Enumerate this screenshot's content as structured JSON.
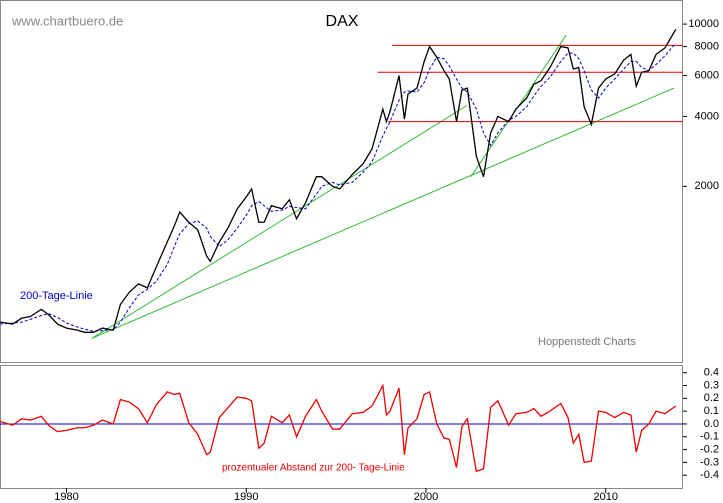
{
  "watermark": "www.chartbuero.de",
  "source": "Hoppenstedt Charts",
  "chart_data": [
    {
      "type": "line",
      "title": "DAX",
      "yscale": "log",
      "xlim": [
        1976.3,
        2014.3
      ],
      "ylim": [
        350,
        12700
      ],
      "yticks": [
        {
          "value": 10000,
          "label": "10000"
        },
        8000,
        6000,
        4000,
        2000
      ],
      "x": [
        1976.3,
        1977.0,
        1977.5,
        1978.0,
        1978.6,
        1979.0,
        1979.5,
        1980.0,
        1980.6,
        1981.0,
        1981.5,
        1982.0,
        1982.6,
        1983.0,
        1983.5,
        1984.0,
        1984.5,
        1985.0,
        1985.6,
        1986.0,
        1986.3,
        1986.8,
        1987.3,
        1987.8,
        1988.0,
        1988.5,
        1989.0,
        1989.5,
        1990.0,
        1990.3,
        1990.7,
        1991.0,
        1991.4,
        1992.0,
        1992.4,
        1992.8,
        1993.3,
        1993.9,
        1994.2,
        1994.8,
        1995.2,
        1995.9,
        1996.5,
        1997.0,
        1997.6,
        1997.8,
        1998.0,
        1998.5,
        1998.8,
        1999.0,
        1999.5,
        1999.9,
        2000.2,
        2000.6,
        2001.0,
        2001.3,
        2001.7,
        2002.0,
        2002.3,
        2002.8,
        2003.2,
        2003.6,
        2004.0,
        2004.6,
        2005.0,
        2005.6,
        2006.0,
        2006.4,
        2006.9,
        2007.5,
        2007.9,
        2008.2,
        2008.5,
        2008.8,
        2009.2,
        2009.6,
        2010.0,
        2010.5,
        2011.0,
        2011.4,
        2011.7,
        2012.0,
        2012.4,
        2012.8,
        2013.3,
        2013.9
      ],
      "series": [
        {
          "name": "DAX",
          "color": "#000000",
          "values": [
            520,
            510,
            540,
            550,
            590,
            560,
            510,
            490,
            480,
            470,
            470,
            490,
            480,
            620,
            700,
            760,
            730,
            900,
            1150,
            1350,
            1550,
            1400,
            1300,
            1000,
            950,
            1150,
            1330,
            1600,
            1800,
            1950,
            1400,
            1400,
            1650,
            1600,
            1750,
            1450,
            1700,
            2200,
            2200,
            2000,
            1950,
            2250,
            2500,
            2900,
            4300,
            3800,
            4200,
            6000,
            3900,
            5000,
            5300,
            6900,
            8000,
            7200,
            6300,
            5800,
            3800,
            5200,
            5300,
            2700,
            2200,
            3400,
            4000,
            3800,
            4300,
            4800,
            5500,
            5700,
            6500,
            8000,
            7900,
            6400,
            6500,
            4400,
            3700,
            5300,
            5800,
            6100,
            7000,
            7400,
            5400,
            6200,
            6300,
            7400,
            7900,
            9500
          ]
        },
        {
          "name": "200-Tage-Linie",
          "color": "#0000cc",
          "dashed": true,
          "values": [
            510,
            515,
            520,
            535,
            555,
            565,
            545,
            515,
            495,
            485,
            475,
            478,
            482,
            520,
            600,
            680,
            720,
            780,
            920,
            1100,
            1250,
            1380,
            1420,
            1320,
            1220,
            1100,
            1180,
            1320,
            1500,
            1650,
            1720,
            1650,
            1560,
            1580,
            1640,
            1620,
            1600,
            1850,
            2000,
            2080,
            2030,
            2080,
            2300,
            2550,
            3300,
            3550,
            3800,
            4700,
            5100,
            5150,
            5100,
            5600,
            6400,
            7200,
            7100,
            6600,
            5800,
            5300,
            5100,
            4300,
            3400,
            3000,
            3400,
            3850,
            4000,
            4400,
            4900,
            5400,
            5900,
            6900,
            7500,
            7500,
            7100,
            6300,
            5200,
            4800,
            5300,
            5800,
            6400,
            6900,
            6900,
            6500,
            6300,
            6700,
            7300,
            8300
          ]
        }
      ],
      "hlines": {
        "color": "#dd0000",
        "lines": [
          {
            "value": 8100,
            "x": 1998.1
          },
          {
            "value": 6200,
            "x": 1997.3
          },
          {
            "value": 3800,
            "x": 1997.9
          }
        ]
      },
      "trendlines": {
        "color": "#33bb33",
        "lines": [
          {
            "x": [
              1981.4,
              2002.3
            ],
            "y": [
              442,
              4470
            ]
          },
          {
            "x": [
              1981.4,
              2013.8
            ],
            "y": [
              442,
              5300
            ]
          },
          {
            "x": [
              2002.5,
              2007.8
            ],
            "y": [
              2200,
              8960
            ]
          }
        ]
      }
    },
    {
      "type": "line",
      "xlim": [
        1976.3,
        2014.3
      ],
      "ylim": [
        -0.5,
        0.46
      ],
      "xticks": [
        1980,
        1990,
        2000,
        2010
      ],
      "yticks": [
        0.4,
        0.3,
        0.2,
        0.1,
        {
          "value": 0,
          "label": "0.0"
        },
        -0.1,
        -0.2,
        -0.3,
        -0.4
      ],
      "zero_line_color": "#0000cc",
      "x": [
        1976.3,
        1977.0,
        1977.5,
        1978.0,
        1978.6,
        1979.0,
        1979.5,
        1980.0,
        1980.6,
        1981.0,
        1981.5,
        1982.0,
        1982.6,
        1983.0,
        1983.5,
        1984.0,
        1984.5,
        1985.0,
        1985.6,
        1986.0,
        1986.3,
        1986.8,
        1987.3,
        1987.8,
        1988.0,
        1988.5,
        1989.0,
        1989.5,
        1990.0,
        1990.3,
        1990.7,
        1991.0,
        1991.4,
        1992.0,
        1992.4,
        1992.8,
        1993.3,
        1993.9,
        1994.2,
        1994.8,
        1995.2,
        1995.9,
        1996.5,
        1997.0,
        1997.6,
        1997.8,
        1998.0,
        1998.5,
        1998.8,
        1999.0,
        1999.5,
        1999.9,
        2000.2,
        2000.6,
        2001.0,
        2001.3,
        2001.7,
        2002.0,
        2002.3,
        2002.8,
        2003.2,
        2003.6,
        2004.0,
        2004.6,
        2005.0,
        2005.6,
        2006.0,
        2006.4,
        2006.9,
        2007.5,
        2007.9,
        2008.2,
        2008.5,
        2008.8,
        2009.2,
        2009.6,
        2010.0,
        2010.5,
        2011.0,
        2011.4,
        2011.7,
        2012.0,
        2012.4,
        2012.8,
        2013.3,
        2013.9
      ],
      "series": [
        {
          "name": "prozentualer Abstand zur 200- Tage-Linie",
          "color": "#ee0000",
          "values": [
            0.02,
            -0.01,
            0.04,
            0.03,
            0.06,
            -0.01,
            -0.06,
            -0.05,
            -0.03,
            -0.03,
            -0.01,
            0.03,
            0,
            0.19,
            0.17,
            0.12,
            0.01,
            0.15,
            0.25,
            0.23,
            0.24,
            0.01,
            -0.08,
            -0.24,
            -0.22,
            0.05,
            0.13,
            0.21,
            0.2,
            0.18,
            -0.19,
            -0.15,
            0.06,
            0.01,
            0.07,
            -0.1,
            0.06,
            0.19,
            0.1,
            -0.04,
            -0.04,
            0.08,
            0.09,
            0.14,
            0.3,
            0.07,
            0.1,
            0.28,
            -0.24,
            -0.03,
            0.04,
            0.23,
            0.25,
            0,
            -0.11,
            -0.12,
            -0.34,
            -0.02,
            0.04,
            -0.37,
            -0.35,
            0.13,
            0.18,
            -0.01,
            0.08,
            0.09,
            0.12,
            0.06,
            0.1,
            0.16,
            0.05,
            -0.15,
            -0.08,
            -0.3,
            -0.29,
            0.1,
            0.09,
            0.05,
            0.09,
            0.07,
            -0.22,
            -0.05,
            0,
            0.1,
            0.08,
            0.14
          ]
        }
      ]
    }
  ]
}
